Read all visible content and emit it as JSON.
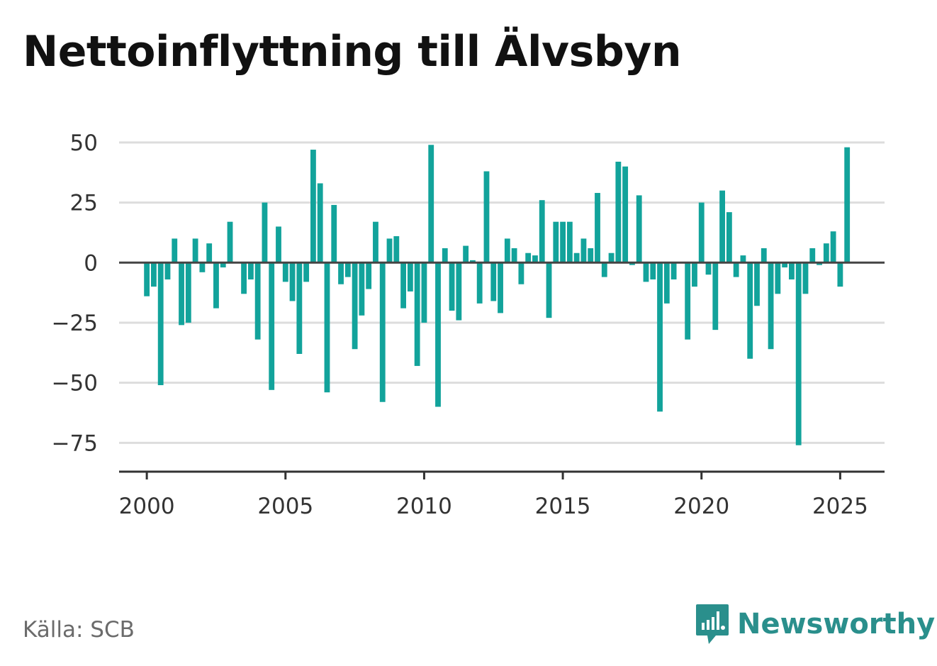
{
  "title": "Nettoinflyttning till Älvsbyn",
  "source": "Källa: SCB",
  "brand": {
    "name": "Newsworthy",
    "icon": "newsworthy-logo-icon",
    "color": "#2a8f8c"
  },
  "colors": {
    "bar": "#12a39b",
    "grid": "#dddddd",
    "axis": "#333333",
    "zero": "#444444"
  },
  "chart_data": {
    "type": "bar",
    "title": "Nettoinflyttning till Älvsbyn",
    "xlabel": "",
    "ylabel": "",
    "ylim": [
      -87,
      60
    ],
    "xlim": [
      1999.0,
      2026.6
    ],
    "grid": true,
    "y_ticks": [
      50,
      25,
      0,
      -25,
      -50,
      -75
    ],
    "y_tick_labels": [
      "50",
      "25",
      "0",
      "−25",
      "−50",
      "−75"
    ],
    "x_ticks": [
      2000,
      2005,
      2010,
      2015,
      2020,
      2025
    ],
    "x_tick_labels": [
      "2000",
      "2005",
      "2010",
      "2015",
      "2020",
      "2025"
    ],
    "bar_period": "quarter",
    "x": [
      "2000Q1",
      "2000Q2",
      "2000Q3",
      "2000Q4",
      "2001Q1",
      "2001Q2",
      "2001Q3",
      "2001Q4",
      "2002Q1",
      "2002Q2",
      "2002Q3",
      "2002Q4",
      "2003Q1",
      "2003Q2",
      "2003Q3",
      "2003Q4",
      "2004Q1",
      "2004Q2",
      "2004Q3",
      "2004Q4",
      "2005Q1",
      "2005Q2",
      "2005Q3",
      "2005Q4",
      "2006Q1",
      "2006Q2",
      "2006Q3",
      "2006Q4",
      "2007Q1",
      "2007Q2",
      "2007Q3",
      "2007Q4",
      "2008Q1",
      "2008Q2",
      "2008Q3",
      "2008Q4",
      "2009Q1",
      "2009Q2",
      "2009Q3",
      "2009Q4",
      "2010Q1",
      "2010Q2",
      "2010Q3",
      "2010Q4",
      "2011Q1",
      "2011Q2",
      "2011Q3",
      "2011Q4",
      "2012Q1",
      "2012Q2",
      "2012Q3",
      "2012Q4",
      "2013Q1",
      "2013Q2",
      "2013Q3",
      "2013Q4",
      "2014Q1",
      "2014Q2",
      "2014Q3",
      "2014Q4",
      "2015Q1",
      "2015Q2",
      "2015Q3",
      "2015Q4",
      "2016Q1",
      "2016Q2",
      "2016Q3",
      "2016Q4",
      "2017Q1",
      "2017Q2",
      "2017Q3",
      "2017Q4",
      "2018Q1",
      "2018Q2",
      "2018Q3",
      "2018Q4",
      "2019Q1",
      "2019Q2",
      "2019Q3",
      "2019Q4",
      "2020Q1",
      "2020Q2",
      "2020Q3",
      "2020Q4",
      "2021Q1",
      "2021Q2",
      "2021Q3",
      "2021Q4",
      "2022Q1",
      "2022Q2",
      "2022Q3",
      "2022Q4",
      "2023Q1",
      "2023Q2",
      "2023Q3",
      "2023Q4",
      "2024Q1",
      "2024Q2",
      "2024Q3",
      "2024Q4",
      "2025Q1",
      "2025Q2"
    ],
    "values": [
      -14,
      -10,
      -51,
      -7,
      10,
      -26,
      -25,
      10,
      -4,
      8,
      -19,
      -2,
      17,
      0,
      -13,
      -7,
      -32,
      25,
      -53,
      15,
      -8,
      -16,
      -38,
      -8,
      47,
      33,
      -54,
      24,
      -9,
      -6,
      -36,
      -22,
      -11,
      17,
      -58,
      10,
      11,
      -19,
      -12,
      -43,
      -25,
      49,
      -60,
      6,
      -20,
      -24,
      7,
      1,
      -17,
      38,
      -16,
      -21,
      10,
      6,
      -9,
      4,
      3,
      26,
      -23,
      17,
      17,
      17,
      4,
      10,
      6,
      29,
      -6,
      4,
      42,
      40,
      -1,
      28,
      -8,
      -7,
      -62,
      -17,
      -7,
      0,
      -32,
      -10,
      25,
      -5,
      -28,
      30,
      21,
      -6,
      3,
      -40,
      -18,
      6,
      -36,
      -13,
      -2,
      -7,
      -76,
      -13,
      6,
      -1,
      8,
      13,
      -10,
      48
    ]
  }
}
